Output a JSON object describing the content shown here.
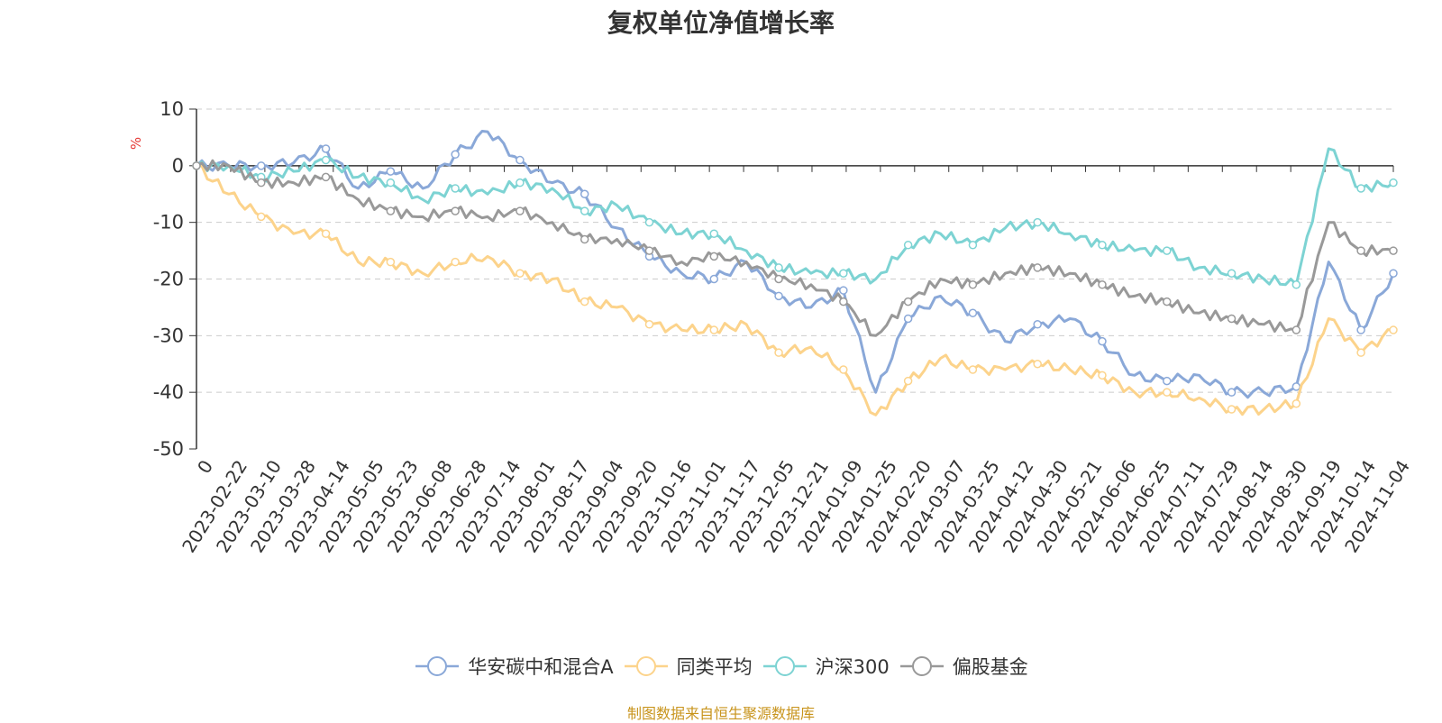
{
  "chart_data": {
    "type": "line",
    "title": "复权单位净值增长率",
    "ylabel": "%",
    "ylim": [
      -50,
      10
    ],
    "yticks": [
      10,
      0,
      -10,
      -20,
      -30,
      -40,
      -50
    ],
    "grid": true,
    "legend_position": "bottom-center",
    "x_ticks": [
      "0",
      "2023-02-22",
      "2023-03-10",
      "2023-03-28",
      "2023-04-14",
      "2023-05-05",
      "2023-05-23",
      "2023-06-08",
      "2023-06-28",
      "2023-07-14",
      "2023-08-01",
      "2023-08-17",
      "2023-09-04",
      "2023-09-20",
      "2023-10-16",
      "2023-11-01",
      "2023-11-17",
      "2023-12-05",
      "2023-12-21",
      "2024-01-09",
      "2024-01-25",
      "2024-02-20",
      "2024-03-07",
      "2024-03-25",
      "2024-04-12",
      "2024-04-30",
      "2024-05-21",
      "2024-06-06",
      "2024-06-25",
      "2024-07-11",
      "2024-07-29",
      "2024-08-14",
      "2024-08-30",
      "2024-09-19",
      "2024-10-14",
      "2024-11-04"
    ],
    "series": [
      {
        "name": "华安碳中和混合A",
        "color": "#8aa8d8",
        "values": [
          0,
          0,
          0,
          0.5,
          3,
          -4,
          -1,
          -4,
          2,
          6,
          1,
          -3,
          -5,
          -11,
          -16,
          -19,
          -20,
          -17,
          -23,
          -25,
          -22,
          -40,
          -27,
          -23,
          -26,
          -31,
          -28,
          -27,
          -31,
          -37,
          -38,
          -37,
          -40,
          -40,
          -39,
          -17,
          -29,
          -19
        ]
      },
      {
        "name": "同类平均",
        "color": "#fcd38b",
        "values": [
          0,
          -5,
          -9,
          -12,
          -12,
          -17,
          -17,
          -19,
          -17,
          -16,
          -19,
          -20,
          -24,
          -25,
          -28,
          -29,
          -29,
          -28,
          -33,
          -32,
          -36,
          -44,
          -38,
          -34,
          -36,
          -36,
          -35,
          -36,
          -37,
          -40,
          -40,
          -41,
          -43,
          -43,
          -42,
          -27,
          -33,
          -29
        ]
      },
      {
        "name": "沪深300",
        "color": "#7dd3d3",
        "values": [
          0,
          0,
          -2,
          -1,
          1,
          -2,
          -3,
          -6,
          -4,
          -5,
          -3,
          -4,
          -8,
          -7,
          -10,
          -12,
          -12,
          -15,
          -18,
          -19,
          -19,
          -20,
          -14,
          -12,
          -14,
          -11,
          -10,
          -12,
          -14,
          -15,
          -15,
          -18,
          -19,
          -20,
          -21,
          3,
          -4,
          -3
        ]
      },
      {
        "name": "偏股基金",
        "color": "#999999",
        "values": [
          0,
          0,
          -3,
          -3,
          -2,
          -6,
          -8,
          -9,
          -8,
          -9,
          -8,
          -10,
          -13,
          -13,
          -15,
          -17,
          -16,
          -17,
          -20,
          -21,
          -24,
          -30,
          -24,
          -20,
          -21,
          -19,
          -18,
          -19,
          -21,
          -23,
          -24,
          -26,
          -27,
          -28,
          -29,
          -10,
          -15,
          -15
        ]
      }
    ]
  },
  "footer": {
    "source": "制图数据来自恒生聚源数据库"
  }
}
